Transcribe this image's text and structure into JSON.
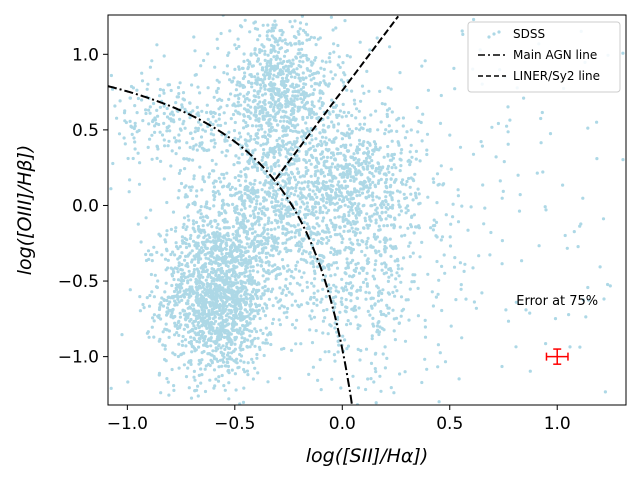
{
  "chart_data": {
    "type": "scatter",
    "xlabel": "log([SII]/Hα])",
    "ylabel": "log([OIII]/Hβ])",
    "xlim": [
      -1.09,
      1.32
    ],
    "ylim": [
      -1.32,
      1.26
    ],
    "xticks": [
      -1.0,
      -0.5,
      0.0,
      0.5,
      1.0
    ],
    "xtick_labels": [
      "−1.0",
      "−0.5",
      "0.0",
      "0.5",
      "1.0"
    ],
    "yticks": [
      -1.0,
      -0.5,
      0.0,
      0.5,
      1.0
    ],
    "ytick_labels": [
      "−1.0",
      "−0.5",
      "0.0",
      "0.5",
      "1.0"
    ],
    "grid": false,
    "legend_position": "top-right",
    "series": [
      {
        "name": "SDSS",
        "kind": "scatter",
        "color": "#add8e6",
        "clusters": [
          {
            "center": [
              -0.58,
              -0.62
            ],
            "spread": [
              0.13,
              0.26
            ],
            "count": 1500
          },
          {
            "center": [
              -0.35,
              -0.05
            ],
            "spread": [
              0.2,
              0.3
            ],
            "count": 900
          },
          {
            "center": [
              -0.3,
              0.75
            ],
            "spread": [
              0.13,
              0.22
            ],
            "count": 800
          },
          {
            "center": [
              0.05,
              0.15
            ],
            "spread": [
              0.15,
              0.25
            ],
            "count": 700
          },
          {
            "center": [
              -0.8,
              0.55
            ],
            "spread": [
              0.15,
              0.15
            ],
            "count": 200
          },
          {
            "center": [
              0.1,
              -0.55
            ],
            "spread": [
              0.15,
              0.3
            ],
            "count": 300
          },
          {
            "center": [
              0.1,
              0.0
            ],
            "spread": [
              0.6,
              0.7
            ],
            "count": 500
          }
        ]
      },
      {
        "name": "Main AGN line",
        "kind": "line",
        "style": "dashdot",
        "color": "#000000",
        "equation": "y = 0.72/(x - 0.32) + 1.30",
        "x_range": [
          -1.09,
          0.05
        ]
      },
      {
        "name": "LINER/Sy2 line",
        "kind": "line",
        "style": "dashed",
        "color": "#000000",
        "equation": "y = 1.89x + 0.76",
        "x_range": [
          -0.31,
          0.26
        ]
      }
    ],
    "error_bar": {
      "label": "Error at 75%",
      "x": 1.0,
      "y": -1.0,
      "xerr": 0.05,
      "yerr": 0.05,
      "color": "#ff0000"
    }
  }
}
